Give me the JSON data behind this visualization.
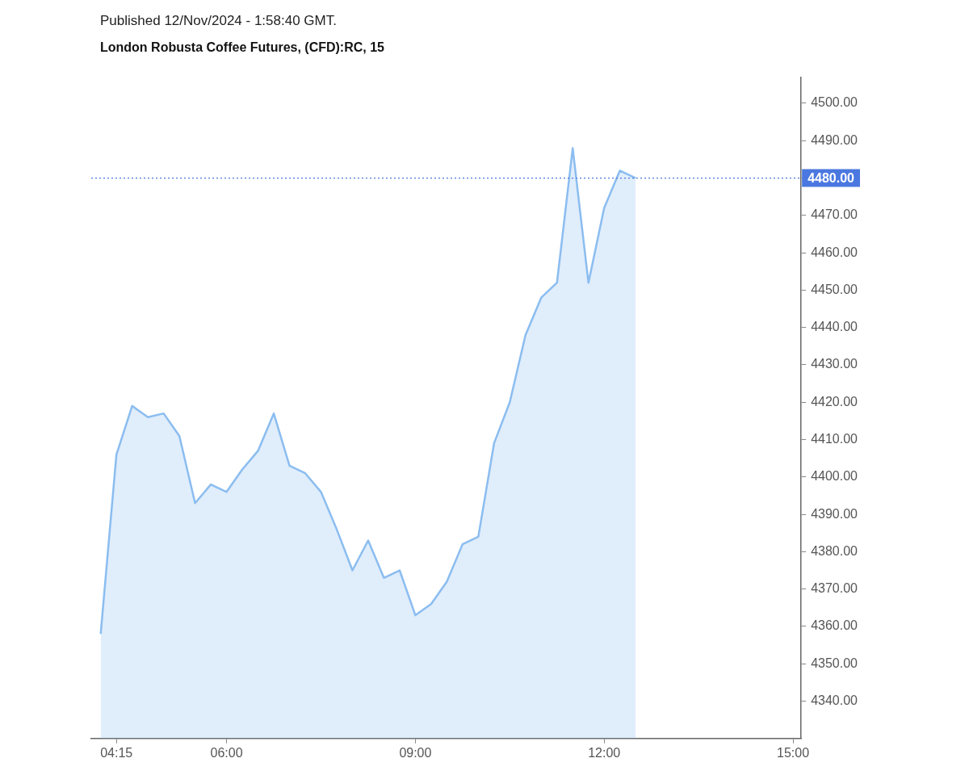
{
  "chart_data": {
    "type": "area",
    "title": "London Robusta Coffee Futures, (CFD):RC, 15",
    "annotations": [
      "Published 12/Nov/2024 - 1:58:40 GMT."
    ],
    "x": [
      4,
      4.25,
      4.5,
      4.75,
      5,
      5.25,
      5.5,
      5.75,
      6,
      6.25,
      6.5,
      6.75,
      7,
      7.25,
      7.5,
      7.75,
      8,
      8.25,
      8.5,
      8.75,
      9,
      9.25,
      9.5,
      9.75,
      10,
      10.25,
      10.5,
      10.75,
      11,
      11.25,
      11.5,
      11.75,
      12,
      12.25,
      12.5
    ],
    "series": [
      {
        "color": "#8bbdf0",
        "values": [
          4358,
          4406,
          4419,
          4416,
          4417,
          4411,
          4393,
          4398,
          4396,
          4402,
          4407,
          4417,
          4403,
          4401,
          4396,
          4386,
          4375,
          4383,
          4373,
          4375,
          4363,
          4366,
          4372,
          4382,
          4384,
          4409,
          4420,
          4438,
          4448,
          4452,
          4488,
          4452,
          4472,
          4482,
          4480
        ]
      }
    ],
    "xlim": [
      3.85,
      15.13
    ],
    "xticks": [
      {
        "value": 4.25,
        "label": "04:15"
      },
      {
        "value": 6,
        "label": "06:00"
      },
      {
        "value": 9,
        "label": "09:00"
      },
      {
        "value": 12,
        "label": "12:00"
      },
      {
        "value": 15,
        "label": "15:00"
      }
    ],
    "ylim": [
      4330,
      4507
    ],
    "yticks": [
      {
        "value": 4340,
        "label": "4340.00"
      },
      {
        "value": 4350,
        "label": "4350.00"
      },
      {
        "value": 4360,
        "label": "4360.00"
      },
      {
        "value": 4370,
        "label": "4370.00"
      },
      {
        "value": 4380,
        "label": "4380.00"
      },
      {
        "value": 4390,
        "label": "4390.00"
      },
      {
        "value": 4400,
        "label": "4400.00"
      },
      {
        "value": 4410,
        "label": "4410.00"
      },
      {
        "value": 4420,
        "label": "4420.00"
      },
      {
        "value": 4430,
        "label": "4430.00"
      },
      {
        "value": 4440,
        "label": "4440.00"
      },
      {
        "value": 4450,
        "label": "4450.00"
      },
      {
        "value": 4460,
        "label": "4460.00"
      },
      {
        "value": 4470,
        "label": "4470.00"
      },
      {
        "value": 4480,
        "label": null
      },
      {
        "value": 4490,
        "label": "4490.00"
      },
      {
        "value": 4500,
        "label": "4500.00"
      }
    ],
    "ref_lines": [
      {
        "axis": "y",
        "value": 4480,
        "label": "4480.00",
        "color": "#4a78e0",
        "line_style": "dotted"
      }
    ],
    "grid": false,
    "legend": false,
    "marker": "none",
    "line_style": "solid"
  }
}
